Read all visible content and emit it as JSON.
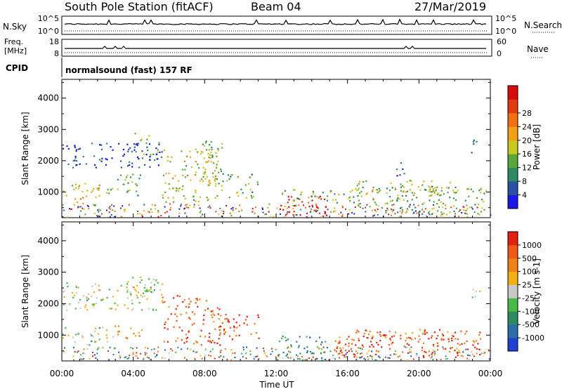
{
  "header": {
    "station": "South Pole Station (fitACF)",
    "beam": "Beam 04",
    "date": "27/Mar/2019"
  },
  "strip_panels": {
    "nsky": {
      "label": "N.Sky",
      "tick_top": "10^5",
      "tick_bottom": "10^0"
    },
    "nsearch": {
      "label": "N.Search",
      "tick_top": "10^5",
      "tick_bottom": "10^0"
    },
    "freq": {
      "label_line1": "Freq.",
      "label_line2": "[MHz]",
      "tick_top": "18",
      "tick_bottom": "8"
    },
    "nave": {
      "label": "Nave",
      "tick_top": "60",
      "tick_bottom": "0"
    },
    "cpid": {
      "label": "CPID",
      "text": "normalsound (fast) 157 RF"
    }
  },
  "chart_data": [
    {
      "type": "heatmap",
      "name": "power",
      "ylabel": "Slant Range [km]",
      "yticks": [
        "1000",
        "2000",
        "3000",
        "4000"
      ],
      "ylim": [
        180,
        4600
      ],
      "xlim": [
        0,
        24
      ],
      "colorbar": {
        "label": "Power [dB]",
        "ticks": [
          "4",
          "8",
          "12",
          "16",
          "20",
          "24",
          "28"
        ],
        "colors": [
          "#1c18e6",
          "#2a4fa3",
          "#2e8a62",
          "#5aa63a",
          "#c7c81e",
          "#f0a214",
          "#f07012",
          "#e43a10",
          "#d80c0c"
        ]
      },
      "regions": [
        {
          "t0": 0.0,
          "t1": 2.5,
          "r0": 600,
          "r1": 1300,
          "level": 0.55
        },
        {
          "t0": 0.0,
          "t1": 5.6,
          "r0": 1800,
          "r1": 2600,
          "level": 0.15
        },
        {
          "t0": 4.0,
          "t1": 5.5,
          "r0": 2200,
          "r1": 2900,
          "level": 0.35
        },
        {
          "t0": 2.5,
          "t1": 4.5,
          "r0": 900,
          "r1": 1600,
          "level": 0.35
        },
        {
          "t0": 5.6,
          "t1": 9.0,
          "r0": 700,
          "r1": 2400,
          "level": 0.5
        },
        {
          "t0": 7.8,
          "t1": 9.0,
          "r0": 1200,
          "r1": 2700,
          "level": 0.4
        },
        {
          "t0": 9.2,
          "t1": 11.0,
          "r0": 800,
          "r1": 1600,
          "level": 0.35
        },
        {
          "t0": 12.0,
          "t1": 14.8,
          "r0": 200,
          "r1": 900,
          "level": 0.92
        },
        {
          "t0": 12.0,
          "t1": 15.5,
          "r0": 700,
          "r1": 1100,
          "level": 0.45
        },
        {
          "t0": 15.2,
          "t1": 23.8,
          "r0": 300,
          "r1": 1200,
          "level": 0.4
        },
        {
          "t0": 16.5,
          "t1": 22.0,
          "r0": 900,
          "r1": 1400,
          "level": 0.5
        },
        {
          "t0": 18.5,
          "t1": 19.2,
          "r0": 1500,
          "r1": 2000,
          "level": 0.2
        },
        {
          "t0": 22.9,
          "t1": 23.4,
          "r0": 2200,
          "r1": 2700,
          "level": 0.1
        }
      ]
    },
    {
      "type": "heatmap",
      "name": "velocity",
      "ylabel": "Slant Range [km]",
      "yticks": [
        "1000",
        "2000",
        "3000",
        "4000"
      ],
      "ylim": [
        180,
        4600
      ],
      "xlim": [
        0,
        24
      ],
      "colorbar": {
        "label": "Velocity [m s-1]",
        "ticks": [
          "1000",
          "500",
          "100",
          "25",
          "-25",
          "-100",
          "-500",
          "-1000"
        ],
        "colors": [
          "#2040d0",
          "#2e6ea8",
          "#2e8a62",
          "#48b848",
          "#c8c8c8",
          "#f0b010",
          "#f08018",
          "#f05818",
          "#e42010"
        ]
      },
      "regions": [
        {
          "t0": 0.0,
          "t1": 2.6,
          "r0": 600,
          "r1": 1300,
          "level": 0.45
        },
        {
          "t0": 0.0,
          "t1": 5.6,
          "r0": 1800,
          "r1": 2700,
          "level": 0.5
        },
        {
          "t0": 3.6,
          "t1": 5.5,
          "r0": 2200,
          "r1": 2900,
          "level": 0.5
        },
        {
          "t0": 2.8,
          "t1": 4.5,
          "r0": 900,
          "r1": 1400,
          "level": 0.7
        },
        {
          "t0": 5.6,
          "t1": 9.0,
          "r0": 700,
          "r1": 2300,
          "level": 0.82
        },
        {
          "t0": 9.0,
          "t1": 11.0,
          "r0": 800,
          "r1": 1700,
          "level": 0.85
        },
        {
          "t0": 12.0,
          "t1": 15.0,
          "r0": 200,
          "r1": 1000,
          "level": 0.25
        },
        {
          "t0": 15.2,
          "t1": 23.5,
          "r0": 300,
          "r1": 1200,
          "level": 0.83
        },
        {
          "t0": 16.5,
          "t1": 22.0,
          "r0": 800,
          "r1": 1200,
          "level": 0.82
        },
        {
          "t0": 22.8,
          "t1": 23.4,
          "r0": 2200,
          "r1": 2700,
          "level": 0.5
        }
      ]
    }
  ],
  "x_axis": {
    "label": "Time UT",
    "ticks": [
      "00:00",
      "04:00",
      "08:00",
      "12:00",
      "16:00",
      "20:00",
      "00:00"
    ]
  }
}
